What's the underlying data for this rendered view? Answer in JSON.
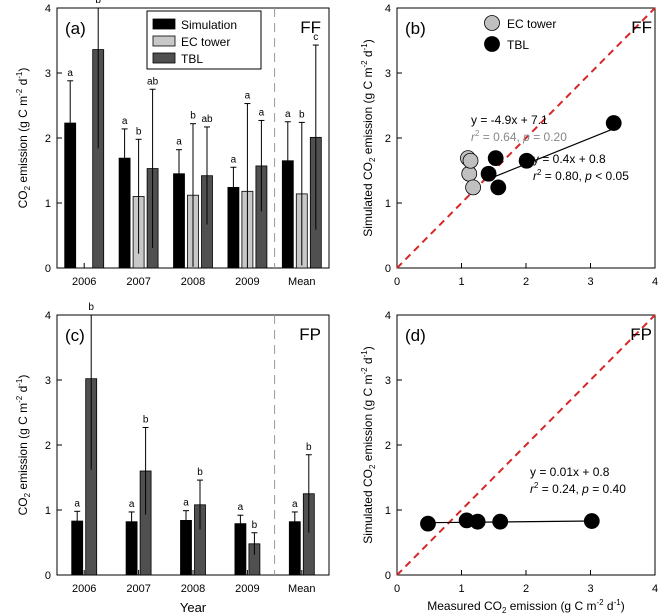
{
  "chart_data": [
    {
      "id": "a",
      "type": "bar",
      "panel_label": "(a)",
      "site": "FF",
      "categories": [
        "2006",
        "2007",
        "2008",
        "2009",
        "Mean"
      ],
      "ylabel_parts": [
        "CO",
        "2",
        " emission (g C m",
        "-2",
        " d",
        "-1",
        ")"
      ],
      "xlabel": "",
      "ylim": [
        0,
        4
      ],
      "yticks": [
        "0",
        "1",
        "2",
        "3",
        "4"
      ],
      "legend": {
        "placement": "top-center",
        "entries": [
          "Simulation",
          "EC tower",
          "TBL"
        ]
      },
      "divider_after": "2009",
      "series": [
        {
          "name": "Simulation",
          "color": "#000000",
          "values": [
            2.23,
            1.69,
            1.45,
            1.24,
            1.65
          ],
          "err": [
            0.65,
            0.45,
            0.37,
            0.31,
            0.6
          ],
          "letters": [
            "a",
            "a",
            "a",
            "a",
            "a"
          ]
        },
        {
          "name": "EC tower",
          "color": "#c8c8c8",
          "values": [
            null,
            1.1,
            1.12,
            1.18,
            1.14
          ],
          "err": [
            null,
            0.88,
            1.1,
            1.35,
            1.1
          ],
          "letters": [
            "",
            "b",
            "b",
            "a",
            "b"
          ]
        },
        {
          "name": "TBL",
          "color": "#505050",
          "values": [
            3.36,
            1.53,
            1.42,
            1.57,
            2.01
          ],
          "err": [
            1.52,
            1.22,
            0.75,
            0.7,
            1.42
          ],
          "letters": [
            "b",
            "ab",
            "ab",
            "a",
            "c"
          ]
        }
      ]
    },
    {
      "id": "b",
      "type": "scatter",
      "panel_label": "(b)",
      "site": "FF",
      "xlim": [
        0,
        4
      ],
      "ylim": [
        0,
        4
      ],
      "xticks": [
        "0",
        "1",
        "2",
        "3",
        "4"
      ],
      "yticks": [
        "0",
        "1",
        "2",
        "3",
        "4"
      ],
      "xlabel_parts": [],
      "ylabel_parts": [
        "Simulated CO",
        "2",
        " emission (g C m",
        "-2",
        " d",
        "-1",
        ")"
      ],
      "legend": {
        "placement": "top-left",
        "entries": [
          "EC tower",
          "TBL"
        ]
      },
      "one_to_one_line": true,
      "series": [
        {
          "name": "EC tower",
          "color": "#c0c0c0",
          "x": [
            1.1,
            1.12,
            1.14,
            1.18
          ],
          "y": [
            1.69,
            1.45,
            1.65,
            1.24
          ],
          "fit": {
            "slope": -4.9,
            "intercept": 7.1,
            "x_range": [
              1.1,
              1.18
            ],
            "drawn": false
          },
          "equation": "y = -4.9x + 7.1",
          "stats": {
            "r2": "0.64",
            "p_op": "=",
            "p": "0.20"
          }
        },
        {
          "name": "TBL",
          "color": "#000000",
          "x": [
            3.36,
            1.53,
            1.42,
            1.57,
            2.01
          ],
          "y": [
            2.23,
            1.69,
            1.45,
            1.24,
            1.65
          ],
          "fit": {
            "slope": 0.4,
            "intercept": 0.8,
            "x_range": [
              1.42,
              3.36
            ],
            "drawn": true
          },
          "equation": "y = 0.4x + 0.8",
          "stats": {
            "r2": "0.80",
            "p_op": "<",
            "p": "0.05"
          }
        }
      ]
    },
    {
      "id": "c",
      "type": "bar",
      "panel_label": "(c)",
      "site": "FP",
      "categories": [
        "2006",
        "2007",
        "2008",
        "2009",
        "Mean"
      ],
      "ylabel_parts": [
        "CO",
        "2",
        " emission (g C m",
        "-2",
        " d",
        "-1",
        ")"
      ],
      "xlabel": "Year",
      "ylim": [
        0,
        4
      ],
      "yticks": [
        "0",
        "1",
        "2",
        "3",
        "4"
      ],
      "divider_after": "2009",
      "series": [
        {
          "name": "Simulation",
          "color": "#000000",
          "values": [
            0.83,
            0.82,
            0.84,
            0.79,
            0.82
          ],
          "err": [
            0.15,
            0.15,
            0.15,
            0.13,
            0.15
          ],
          "letters": [
            "a",
            "a",
            "a",
            "a",
            "a"
          ]
        },
        {
          "name": "TBL",
          "color": "#505050",
          "values": [
            3.02,
            1.6,
            1.08,
            0.48,
            1.25
          ],
          "err": [
            1.4,
            0.67,
            0.38,
            0.17,
            0.6
          ],
          "letters": [
            "b",
            "b",
            "b",
            "b",
            "b"
          ]
        }
      ]
    },
    {
      "id": "d",
      "type": "scatter",
      "panel_label": "(d)",
      "site": "FP",
      "xlim": [
        0,
        4
      ],
      "ylim": [
        0,
        4
      ],
      "xticks": [
        "0",
        "1",
        "2",
        "3",
        "4"
      ],
      "yticks": [
        "0",
        "1",
        "2",
        "3",
        "4"
      ],
      "xlabel_parts": [
        "Measured CO",
        "2",
        " emission (g C m",
        "-2",
        " d",
        "-1",
        ")"
      ],
      "ylabel_parts": [
        "Simulated CO",
        "2",
        " emission (g C m",
        "-2",
        " d",
        "-1",
        ")"
      ],
      "one_to_one_line": true,
      "series": [
        {
          "name": "TBL",
          "color": "#000000",
          "x": [
            3.02,
            1.6,
            1.08,
            0.48,
            1.25
          ],
          "y": [
            0.83,
            0.82,
            0.84,
            0.79,
            0.82
          ],
          "fit": {
            "slope": 0.01,
            "intercept": 0.8,
            "x_range": [
              0.48,
              3.02
            ],
            "drawn": true
          },
          "equation": "y = 0.01x + 0.8",
          "stats": {
            "r2": "0.24",
            "p_op": "=",
            "p": "0.40"
          }
        }
      ]
    }
  ]
}
